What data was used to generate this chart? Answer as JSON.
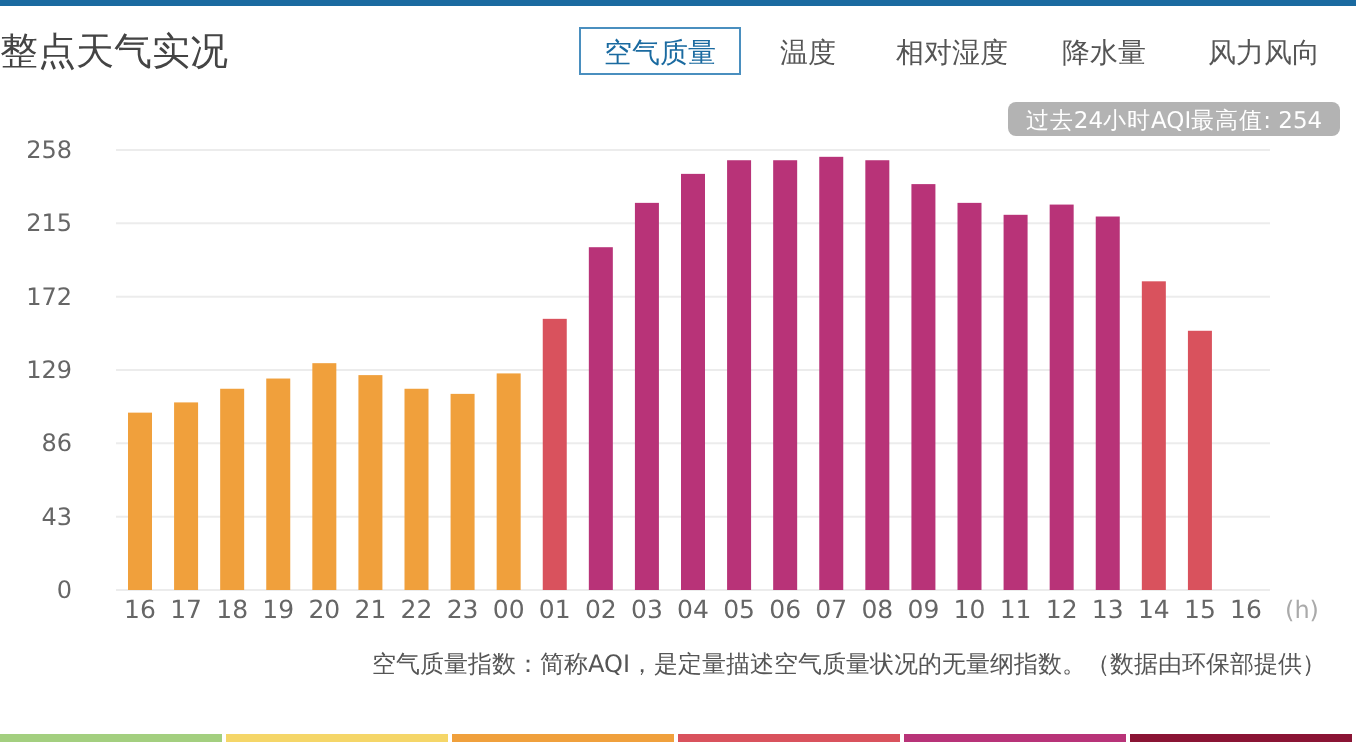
{
  "chart_data": {
    "type": "bar",
    "title": "整点天气实况",
    "xlabel": "(h)",
    "categories": [
      "16",
      "17",
      "18",
      "19",
      "20",
      "21",
      "22",
      "23",
      "00",
      "01",
      "02",
      "03",
      "04",
      "05",
      "06",
      "07",
      "08",
      "09",
      "10",
      "11",
      "12",
      "13",
      "14",
      "15",
      "16"
    ],
    "values": [
      104,
      110,
      118,
      124,
      133,
      126,
      118,
      115,
      127,
      159,
      201,
      227,
      244,
      252,
      252,
      254,
      252,
      238,
      227,
      220,
      226,
      219,
      181,
      152,
      null
    ],
    "colors": [
      "#f0a03c",
      "#f0a03c",
      "#f0a03c",
      "#f0a03c",
      "#f0a03c",
      "#f0a03c",
      "#f0a03c",
      "#f0a03c",
      "#f0a03c",
      "#d9525d",
      "#b83378",
      "#b83378",
      "#b83378",
      "#b83378",
      "#b83378",
      "#b83378",
      "#b83378",
      "#b83378",
      "#b83378",
      "#b83378",
      "#b83378",
      "#b83378",
      "#d9525d",
      "#d9525d",
      "#d9525d"
    ],
    "ylim": [
      0,
      258
    ],
    "yticks": [
      0,
      43,
      86,
      129,
      172,
      215,
      258
    ],
    "grid": "y",
    "annotations": [
      "空气质量",
      "温度",
      "相对湿度",
      "降水量",
      "风力风向",
      "过去24小时AQI最高值: 254",
      "空气质量指数：简称AQI，是定量描述空气质量状况的无量纲指数。（数据由环保部提供）"
    ]
  }
}
